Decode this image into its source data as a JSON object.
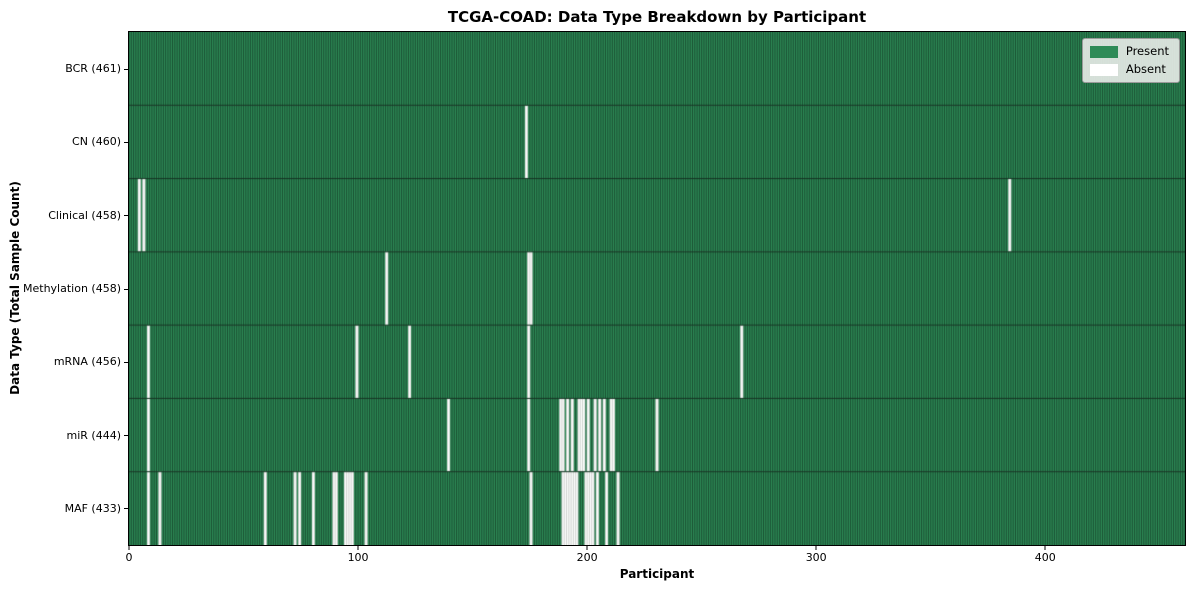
{
  "chart_data": {
    "type": "heatmap",
    "title": "TCGA-COAD: Data Type Breakdown by Participant",
    "xlabel": "Participant",
    "ylabel": "Data Type (Total Sample Count)",
    "legend_position": "upper right",
    "grid": false,
    "xlim": [
      0,
      461
    ],
    "x_ticks": [
      0,
      100,
      200,
      300,
      400
    ],
    "n_participants": 461,
    "legend": [
      {
        "label": "Present",
        "color": "#2e8b57"
      },
      {
        "label": "Absent",
        "color": "#ffffff"
      }
    ],
    "colors": {
      "present": "#2e8b57",
      "absent": "#ffffff",
      "bar_edge": "#0e2c1c",
      "absent_edge": "#c2c6c2",
      "row_divider": "#12301f",
      "spine": "#000000",
      "legend_bg": "#e9ece9",
      "legend_border": "#9a9a9a"
    },
    "rows": [
      {
        "name": "BCR",
        "label": "BCR (461)",
        "count": 461,
        "absent": []
      },
      {
        "name": "CN",
        "label": "CN (460)",
        "count": 460,
        "absent": [
          173
        ]
      },
      {
        "name": "Clinical",
        "label": "Clinical (458)",
        "count": 458,
        "absent": [
          4,
          6,
          384
        ]
      },
      {
        "name": "Methylation",
        "label": "Methylation (458)",
        "count": 458,
        "absent": [
          112,
          174,
          175
        ]
      },
      {
        "name": "mRNA",
        "label": "mRNA (456)",
        "count": 456,
        "absent": [
          8,
          99,
          122,
          174,
          267
        ]
      },
      {
        "name": "miR",
        "label": "miR (444)",
        "count": 444,
        "absent": [
          8,
          139,
          174,
          188,
          189,
          191,
          193,
          196,
          197,
          198,
          200,
          203,
          205,
          207,
          210,
          211,
          230
        ]
      },
      {
        "name": "MAF",
        "label": "MAF (433)",
        "count": 433,
        "absent": [
          8,
          13,
          59,
          72,
          74,
          80,
          89,
          90,
          94,
          95,
          96,
          97,
          103,
          175,
          189,
          190,
          191,
          192,
          193,
          194,
          195,
          199,
          200,
          201,
          202,
          204,
          208,
          213
        ]
      }
    ]
  }
}
